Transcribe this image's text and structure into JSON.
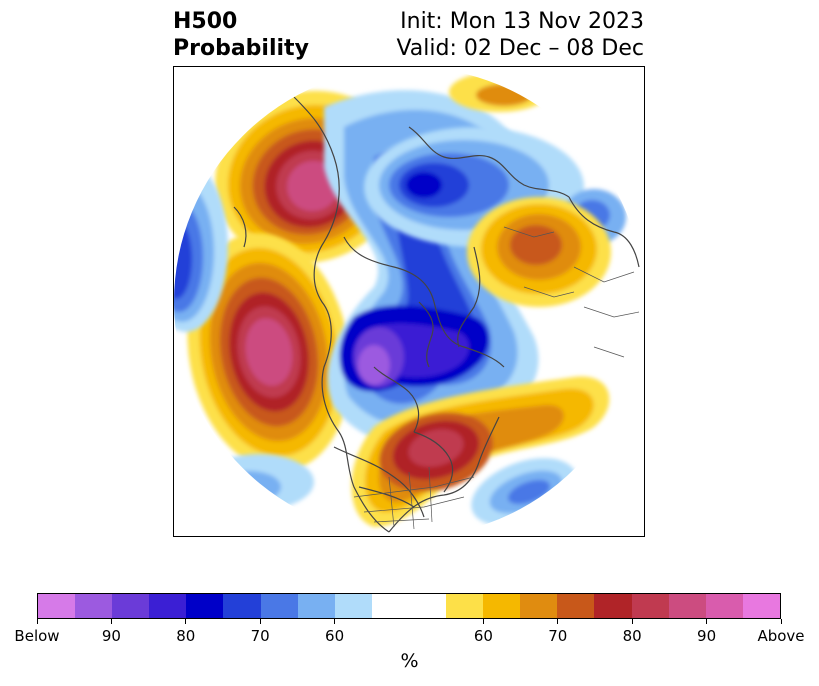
{
  "title": {
    "left_line1": "H500",
    "left_line2": "Probability",
    "right_line1": "Init: Mon 13 Nov 2023",
    "right_line2": "Valid: 02 Dec – 08 Dec"
  },
  "map": {
    "projection": "polar stereographic (Northern Hemisphere)",
    "features": [
      {
        "name": "ridge-gulf-of-alaska",
        "category": "Above",
        "peak": "Above"
      },
      {
        "name": "ridge-north-pacific",
        "category": "Above",
        "peak": "Above"
      },
      {
        "name": "trough-central-pacific",
        "category": "Below",
        "peak": 80
      },
      {
        "name": "trough-north-atlantic-western-europe",
        "category": "Below",
        "peak": "Below"
      },
      {
        "name": "trough-kara-sea-siberia",
        "category": "Below",
        "peak": 80
      },
      {
        "name": "ridge-canada-greenland",
        "category": "Above",
        "peak": 80
      },
      {
        "name": "ridge-western-russia",
        "category": "Above",
        "peak": 70
      },
      {
        "name": "trough-southeast-atlantic",
        "category": "Below",
        "peak": 70
      }
    ]
  },
  "colorbar": {
    "colors": [
      "#d67ae8",
      "#9c5ae0",
      "#6b3bd8",
      "#3b1fd4",
      "#0000c8",
      "#2340d8",
      "#4a78e6",
      "#78b0f2",
      "#b0dcfa",
      "#ffffff",
      "#ffffff",
      "#fde048",
      "#f5b800",
      "#e08c10",
      "#c8581a",
      "#b02428",
      "#c03a50",
      "#cc4c80",
      "#d95cad",
      "#e878e0"
    ],
    "tick_labels": [
      "Below",
      "90",
      "80",
      "70",
      "60",
      "60",
      "70",
      "80",
      "90",
      "Above"
    ],
    "unit": "%"
  }
}
